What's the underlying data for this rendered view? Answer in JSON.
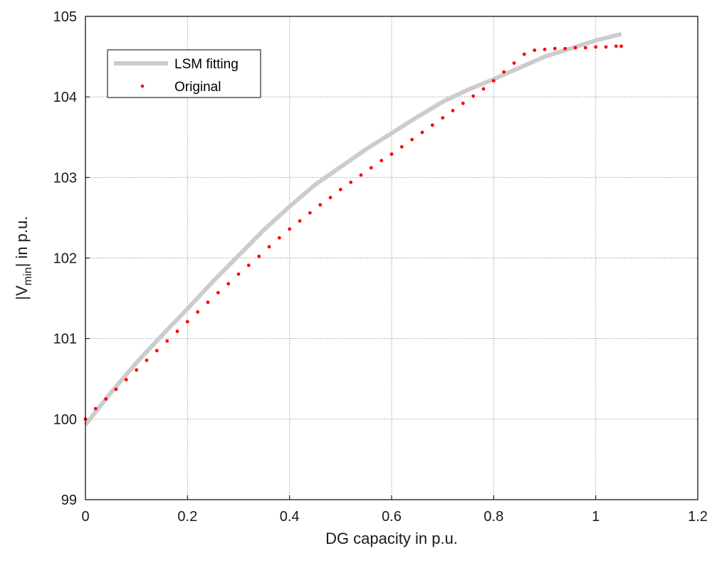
{
  "chart_data": {
    "type": "line",
    "title": "",
    "xlabel": "DG capacity in p.u.",
    "ylabel": {
      "prefix": "|V",
      "subscript": "min",
      "suffix": "| in p.u."
    },
    "xlim": [
      0,
      1.2
    ],
    "ylim": [
      99,
      105
    ],
    "xticks": [
      "0",
      "0.2",
      "0.4",
      "0.6",
      "0.8",
      "1",
      "1.2"
    ],
    "yticks": [
      "99",
      "100",
      "101",
      "102",
      "103",
      "104",
      "105"
    ],
    "grid": true,
    "legend_position": "top-left",
    "series": [
      {
        "name": "LSM fitting",
        "style": "line",
        "color": "#cccccc",
        "x": [
          0,
          0.05,
          0.1,
          0.15,
          0.2,
          0.25,
          0.3,
          0.35,
          0.4,
          0.45,
          0.5,
          0.55,
          0.6,
          0.65,
          0.7,
          0.75,
          0.8,
          0.85,
          0.9,
          0.95,
          1.0,
          1.05
        ],
        "y": [
          99.93,
          100.33,
          100.7,
          101.04,
          101.37,
          101.71,
          102.03,
          102.35,
          102.64,
          102.91,
          103.13,
          103.35,
          103.55,
          103.75,
          103.94,
          104.09,
          104.22,
          104.36,
          104.5,
          104.6,
          104.7,
          104.78
        ]
      },
      {
        "name": "Original",
        "style": "dots",
        "color": "#ff0000",
        "x": [
          0,
          0.02,
          0.04,
          0.06,
          0.08,
          0.1,
          0.12,
          0.14,
          0.16,
          0.18,
          0.2,
          0.22,
          0.24,
          0.26,
          0.28,
          0.3,
          0.32,
          0.34,
          0.36,
          0.38,
          0.4,
          0.42,
          0.44,
          0.46,
          0.48,
          0.5,
          0.52,
          0.54,
          0.56,
          0.58,
          0.6,
          0.62,
          0.64,
          0.66,
          0.68,
          0.7,
          0.72,
          0.74,
          0.76,
          0.78,
          0.8,
          0.82,
          0.84,
          0.86,
          0.88,
          0.9,
          0.92,
          0.94,
          0.96,
          0.98,
          1.0,
          1.02,
          1.04,
          1.05
        ],
        "y": [
          100.0,
          100.13,
          100.25,
          100.37,
          100.49,
          100.61,
          100.73,
          100.85,
          100.97,
          101.09,
          101.21,
          101.33,
          101.45,
          101.57,
          101.68,
          101.8,
          101.91,
          102.02,
          102.14,
          102.25,
          102.36,
          102.46,
          102.56,
          102.66,
          102.75,
          102.85,
          102.94,
          103.03,
          103.12,
          103.21,
          103.29,
          103.38,
          103.47,
          103.56,
          103.65,
          103.74,
          103.83,
          103.92,
          104.01,
          104.1,
          104.2,
          104.31,
          104.42,
          104.53,
          104.58,
          104.59,
          104.6,
          104.6,
          104.61,
          104.61,
          104.62,
          104.62,
          104.63,
          104.63
        ]
      }
    ]
  }
}
